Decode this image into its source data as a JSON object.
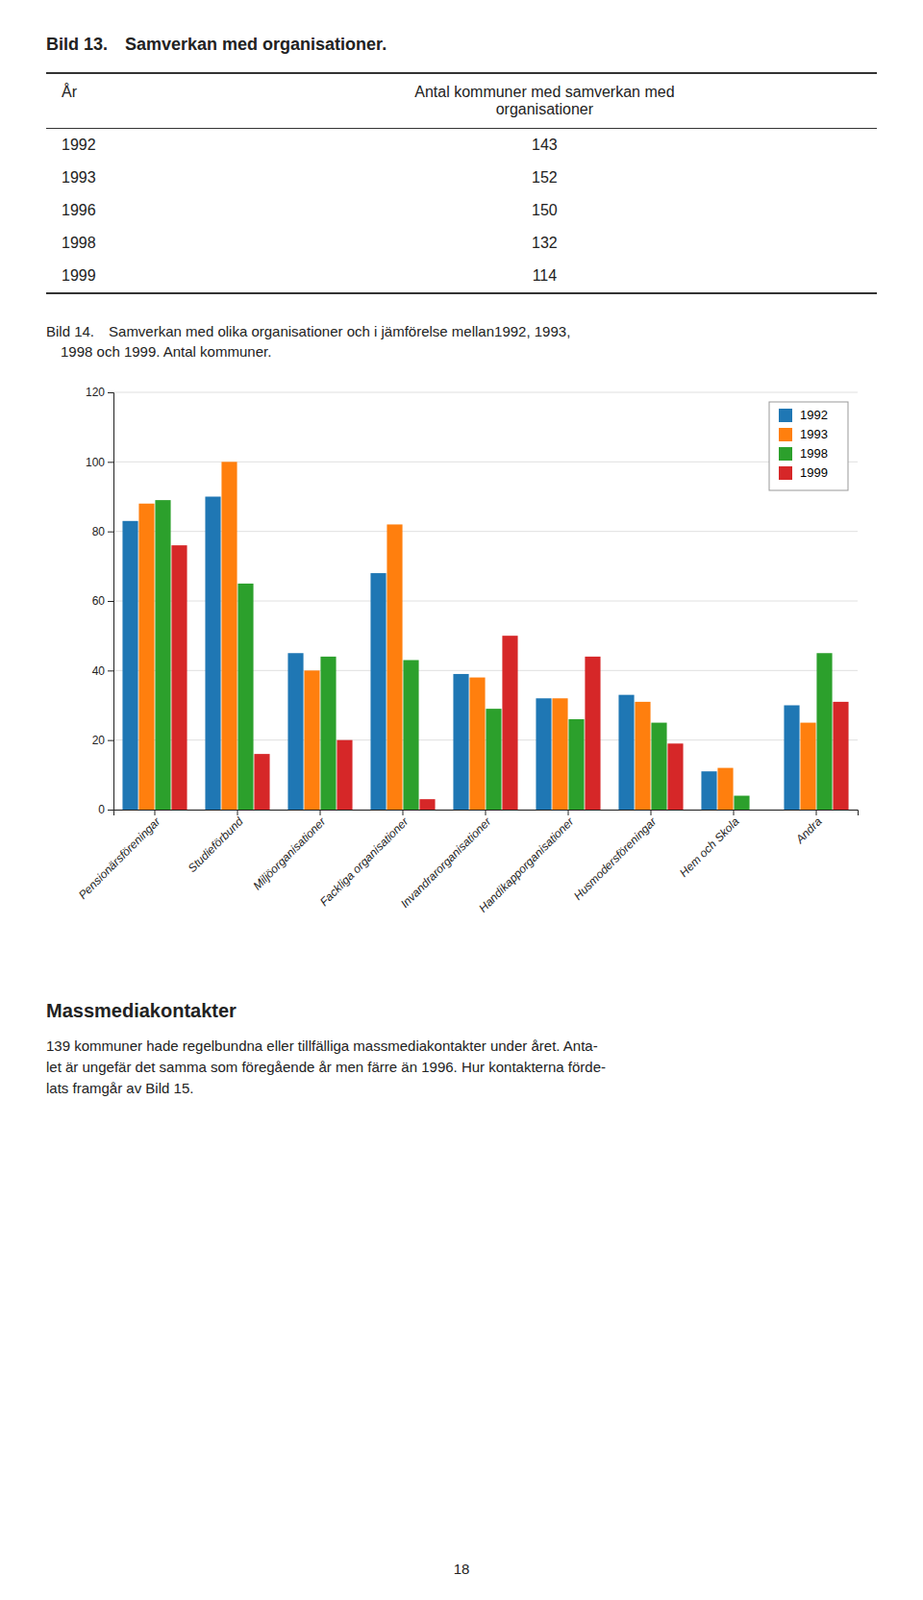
{
  "page_title": "Bild 13. Samverkan med organisationer.",
  "table": {
    "header": [
      "År",
      "Antal kommuner med samverkan med\norganisationer"
    ],
    "rows": [
      [
        "1992",
        "143"
      ],
      [
        "1993",
        "152"
      ],
      [
        "1996",
        "150"
      ],
      [
        "1998",
        "132"
      ],
      [
        "1999",
        "114"
      ]
    ]
  },
  "chart_data": {
    "type": "bar",
    "title": "Bild 14. Samverkan med olika organisationer och i jämförelse mellan1992, 1993,\n 1998 och 1999. Antal kommuner.",
    "categories": [
      "Pensionärsföreningar",
      "Studieförbund",
      "Miljöorganisationer",
      "Fackliga organisationer",
      "Invandrarorganisationer",
      "Handikapporganisationer",
      "Husmodersföreningar",
      "Hem och Skola",
      "Andra"
    ],
    "series": [
      {
        "name": "1992",
        "values": [
          83,
          90,
          45,
          68,
          39,
          32,
          33,
          11,
          30
        ]
      },
      {
        "name": "1993",
        "values": [
          88,
          100,
          40,
          82,
          38,
          32,
          31,
          12,
          25
        ]
      },
      {
        "name": "1998",
        "values": [
          89,
          65,
          44,
          43,
          29,
          26,
          25,
          4,
          45
        ]
      },
      {
        "name": "1999",
        "values": [
          76,
          16,
          20,
          3,
          50,
          44,
          19,
          0,
          31
        ]
      }
    ],
    "ylim": [
      0,
      120
    ],
    "yticks": [
      0,
      20,
      40,
      60,
      80,
      100,
      120
    ],
    "grid": true,
    "legend": "upper right"
  },
  "massmedia_title": "Massmediakontakter",
  "massmedia_text": "139 kommuner hade regelbundna eller tillfälliga massmediakontakter under året. Anta-\nlet är ungefär det samma som föregående år men färre än 1996. Hur kontakterna förde-\nlats framgår av Bild 15.",
  "page_number": "18"
}
